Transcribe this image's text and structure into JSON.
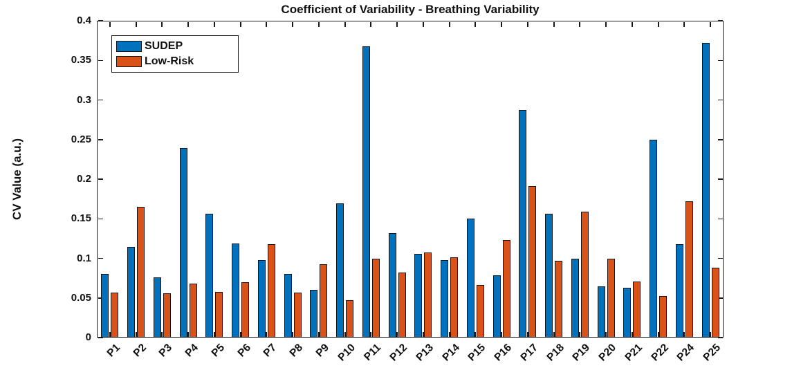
{
  "title": "Coefficient of Variability - Breathing Variability",
  "axes": {
    "ylabel": "CV Value (a.u.)",
    "y_tick_labels": [
      "0",
      "0.05",
      "0.1",
      "0.15",
      "0.2",
      "0.25",
      "0.3",
      "0.35",
      "0.4"
    ]
  },
  "legend": {
    "items": [
      {
        "label": "SUDEP",
        "color": "#0072BD"
      },
      {
        "label": "Low-Risk",
        "color": "#D95319"
      }
    ]
  },
  "chart_data": {
    "type": "bar",
    "title": "Coefficient of Variability - Breathing Variability",
    "xlabel": "",
    "ylabel": "CV Value (a.u.)",
    "ylim": [
      0,
      0.4
    ],
    "ytick_step": 0.05,
    "grid": false,
    "legend_position": "top-left-inside",
    "categories": [
      "P1",
      "P2",
      "P3",
      "P4",
      "P5",
      "P6",
      "P7",
      "P8",
      "P9",
      "P10",
      "P11",
      "P12",
      "P13",
      "P14",
      "P15",
      "P16",
      "P17",
      "P18",
      "P19",
      "P20",
      "P21",
      "P22",
      "P24",
      "P25"
    ],
    "series": [
      {
        "name": "SUDEP",
        "color": "#0072BD",
        "values": [
          0.08,
          0.114,
          0.076,
          0.239,
          0.156,
          0.119,
          0.098,
          0.08,
          0.06,
          0.169,
          0.368,
          0.132,
          0.106,
          0.098,
          0.15,
          0.079,
          0.287,
          0.156,
          0.1,
          0.065,
          0.063,
          0.25,
          0.118,
          0.372
        ]
      },
      {
        "name": "Low-Risk",
        "color": "#D95319",
        "values": [
          0.057,
          0.165,
          0.056,
          0.068,
          0.058,
          0.07,
          0.118,
          0.057,
          0.093,
          0.047,
          0.1,
          0.082,
          0.107,
          0.101,
          0.066,
          0.123,
          0.191,
          0.097,
          0.159,
          0.1,
          0.071,
          0.052,
          0.172,
          0.088
        ]
      }
    ]
  }
}
